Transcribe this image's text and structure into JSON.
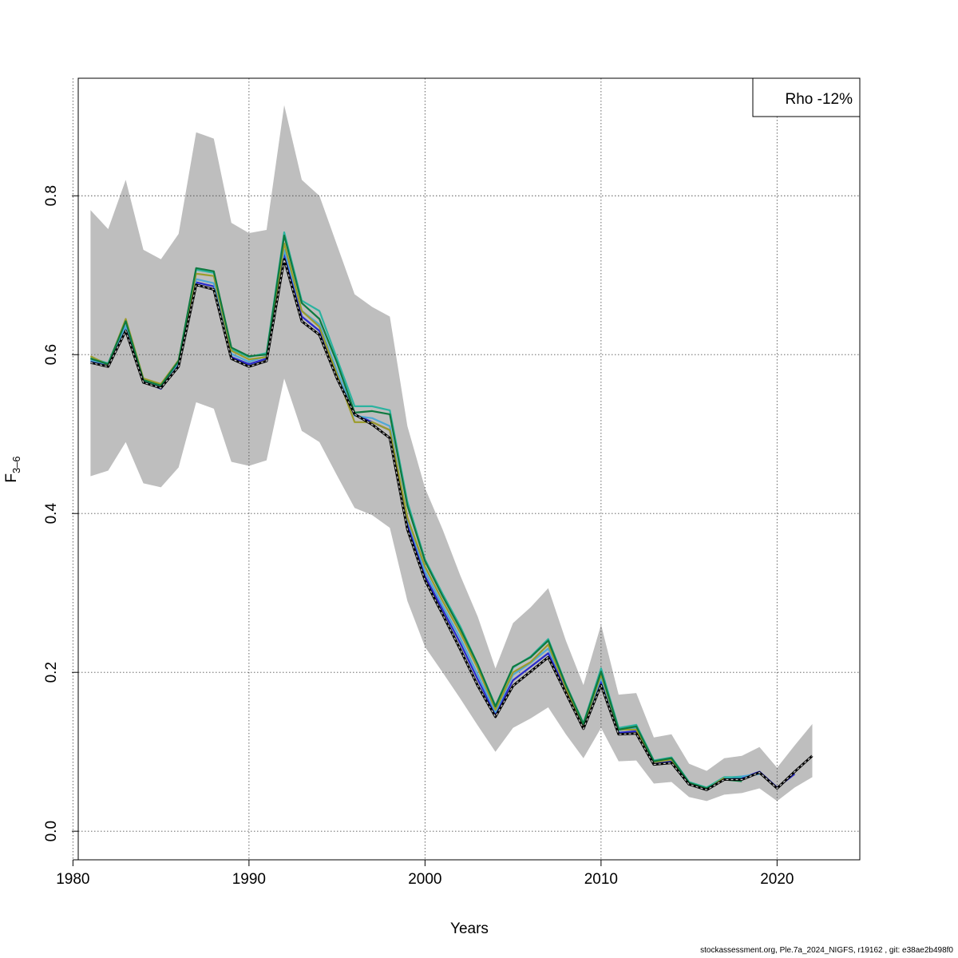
{
  "footer": "stockassessment.org, Ple.7a_2024_NIGFS, r19162 , git: e38ae2b498f0",
  "chart_data": {
    "type": "line",
    "title": "",
    "xlabel": "Years",
    "ylabel_main": "F",
    "ylabel_sub": "3–6",
    "xlim": [
      1980.3,
      2024.7
    ],
    "ylim": [
      -0.036,
      0.948
    ],
    "xticks": [
      1980,
      1990,
      2000,
      2010,
      2020
    ],
    "yticks": [
      0.0,
      0.2,
      0.4,
      0.6,
      0.8
    ],
    "ytick_labels": [
      "0.0",
      "0.2",
      "0.4",
      "0.6",
      "0.8"
    ],
    "grid": true,
    "legend": {
      "placement": "top-right",
      "text": "Rho -12%"
    },
    "years": [
      1981,
      1982,
      1983,
      1984,
      1985,
      1986,
      1987,
      1988,
      1989,
      1990,
      1991,
      1992,
      1993,
      1994,
      1995,
      1996,
      1997,
      1998,
      1999,
      2000,
      2001,
      2002,
      2003,
      2004,
      2005,
      2006,
      2007,
      2008,
      2009,
      2010,
      2011,
      2012,
      2013,
      2014,
      2015,
      2016,
      2017,
      2018,
      2019,
      2020,
      2021,
      2022
    ],
    "ci_upper": [
      0.782,
      0.758,
      0.82,
      0.732,
      0.72,
      0.752,
      0.88,
      0.872,
      0.766,
      0.753,
      0.757,
      0.914,
      0.82,
      0.8,
      0.738,
      0.676,
      0.66,
      0.648,
      0.51,
      0.432,
      0.38,
      0.322,
      0.27,
      0.205,
      0.262,
      0.282,
      0.306,
      0.24,
      0.184,
      0.26,
      0.172,
      0.174,
      0.118,
      0.122,
      0.085,
      0.076,
      0.092,
      0.095,
      0.106,
      0.08,
      0.108,
      0.135
    ],
    "ci_lower": [
      0.447,
      0.454,
      0.49,
      0.438,
      0.433,
      0.458,
      0.54,
      0.532,
      0.465,
      0.46,
      0.467,
      0.57,
      0.504,
      0.49,
      0.448,
      0.407,
      0.398,
      0.382,
      0.29,
      0.232,
      0.2,
      0.167,
      0.133,
      0.1,
      0.13,
      0.142,
      0.156,
      0.122,
      0.092,
      0.13,
      0.088,
      0.089,
      0.06,
      0.062,
      0.043,
      0.038,
      0.046,
      0.048,
      0.054,
      0.038,
      0.055,
      0.068
    ],
    "series": [
      {
        "color": "#000000",
        "dashed": true,
        "values": [
          0.59,
          0.585,
          0.63,
          0.565,
          0.558,
          0.585,
          0.688,
          0.682,
          0.595,
          0.585,
          0.592,
          0.72,
          0.642,
          0.625,
          0.57,
          0.525,
          0.512,
          0.495,
          0.38,
          0.316,
          0.273,
          0.229,
          0.183,
          0.144,
          0.183,
          0.201,
          0.219,
          0.174,
          0.129,
          0.184,
          0.122,
          0.123,
          0.084,
          0.086,
          0.059,
          0.052,
          0.065,
          0.065,
          0.074,
          0.054,
          0.075,
          0.095
        ]
      },
      {
        "color": "#2a2acc",
        "values": [
          0.591,
          0.586,
          0.632,
          0.566,
          0.557,
          0.587,
          0.691,
          0.686,
          0.597,
          0.588,
          0.595,
          0.726,
          0.648,
          0.63,
          0.575,
          0.525,
          0.515,
          0.505,
          0.386,
          0.321,
          0.279,
          0.237,
          0.191,
          0.147,
          0.19,
          0.207,
          0.224,
          0.178,
          0.131,
          0.188,
          0.124,
          0.126,
          0.085,
          0.088,
          0.06,
          0.053,
          0.066,
          0.067,
          0.075,
          0.055,
          0.072
        ]
      },
      {
        "color": "#4fa8d6",
        "values": [
          0.593,
          0.588,
          0.636,
          0.568,
          0.56,
          0.59,
          0.695,
          0.69,
          0.601,
          0.591,
          0.598,
          0.732,
          0.655,
          0.638,
          0.58,
          0.523,
          0.52,
          0.51,
          0.393,
          0.327,
          0.284,
          0.243,
          0.197,
          0.15,
          0.197,
          0.212,
          0.23,
          0.182,
          0.133,
          0.193,
          0.127,
          0.13,
          0.087,
          0.09,
          0.061,
          0.054,
          0.067,
          0.069,
          0.072
        ]
      },
      {
        "color": "#2bb3a0",
        "values": [
          0.596,
          0.589,
          0.643,
          0.569,
          0.562,
          0.592,
          0.707,
          0.703,
          0.607,
          0.597,
          0.602,
          0.754,
          0.668,
          0.655,
          0.595,
          0.535,
          0.535,
          0.53,
          0.415,
          0.342,
          0.299,
          0.258,
          0.21,
          0.158,
          0.206,
          0.22,
          0.242,
          0.185,
          0.136,
          0.205,
          0.13,
          0.134,
          0.089,
          0.093,
          0.062,
          0.055,
          0.068,
          0.068
        ]
      },
      {
        "color": "#9c9c2a",
        "values": [
          0.598,
          0.587,
          0.645,
          0.57,
          0.563,
          0.593,
          0.702,
          0.699,
          0.605,
          0.594,
          0.597,
          0.74,
          0.655,
          0.635,
          0.575,
          0.515,
          0.515,
          0.505,
          0.395,
          0.333,
          0.29,
          0.25,
          0.205,
          0.153,
          0.2,
          0.213,
          0.235,
          0.18,
          0.133,
          0.197,
          0.128,
          0.128,
          0.087,
          0.09,
          0.061,
          0.053,
          0.067
        ]
      },
      {
        "color": "#0e7a40",
        "values": [
          0.595,
          0.588,
          0.642,
          0.568,
          0.561,
          0.592,
          0.709,
          0.705,
          0.609,
          0.598,
          0.6,
          0.75,
          0.665,
          0.645,
          0.59,
          0.527,
          0.529,
          0.525,
          0.41,
          0.34,
          0.296,
          0.255,
          0.21,
          0.157,
          0.207,
          0.219,
          0.24,
          0.184,
          0.135,
          0.201,
          0.128,
          0.132,
          0.088,
          0.092,
          0.061,
          0.054,
          0.065,
          0.063
        ]
      }
    ]
  }
}
